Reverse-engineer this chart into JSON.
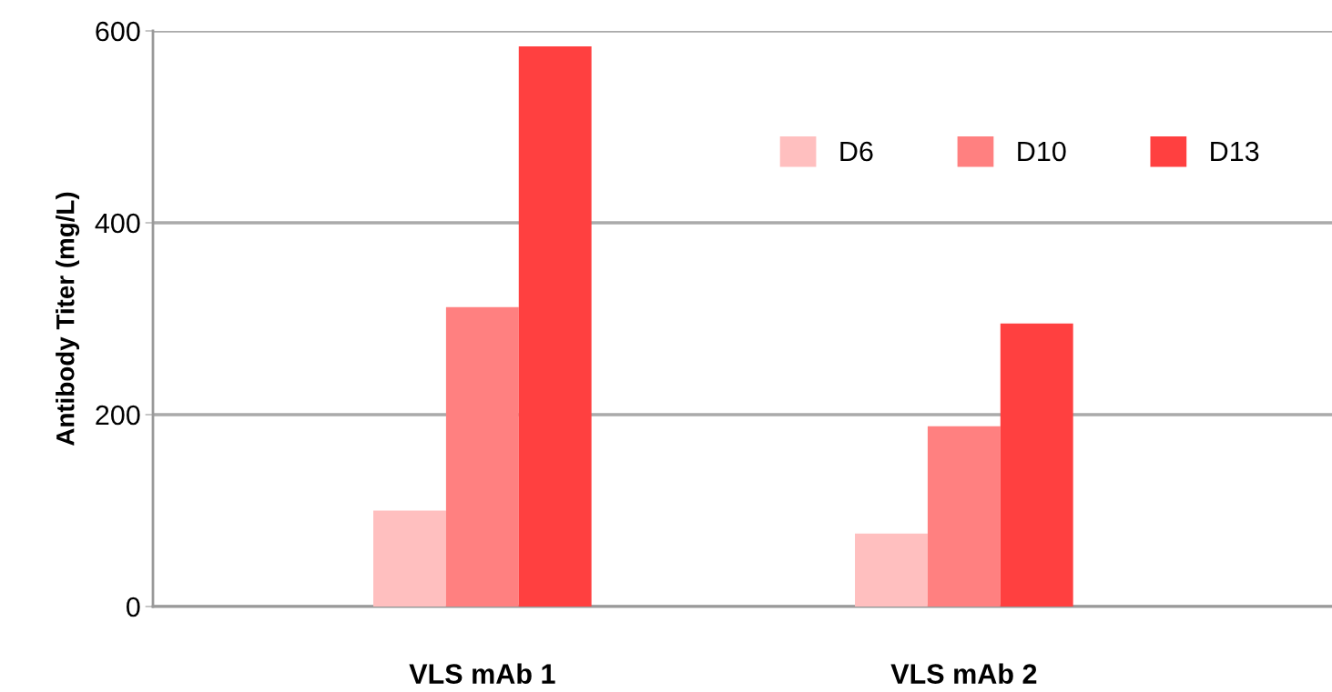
{
  "chart_data": {
    "type": "bar",
    "ylabel": "Antibody Titer (mg/L)",
    "categories": [
      "VLS mAb 1",
      "VLS mAb 2"
    ],
    "series": [
      {
        "name": "D6",
        "color": "#ffbfbf",
        "values": [
          100,
          76
        ]
      },
      {
        "name": "D10",
        "color": "#ff8080",
        "values": [
          312,
          188
        ]
      },
      {
        "name": "D13",
        "color": "#ff4040",
        "values": [
          584,
          295
        ]
      }
    ],
    "ylim": [
      0,
      600
    ],
    "yticks": [
      0,
      200,
      400,
      600
    ],
    "grid": "y",
    "legend": "top right"
  }
}
